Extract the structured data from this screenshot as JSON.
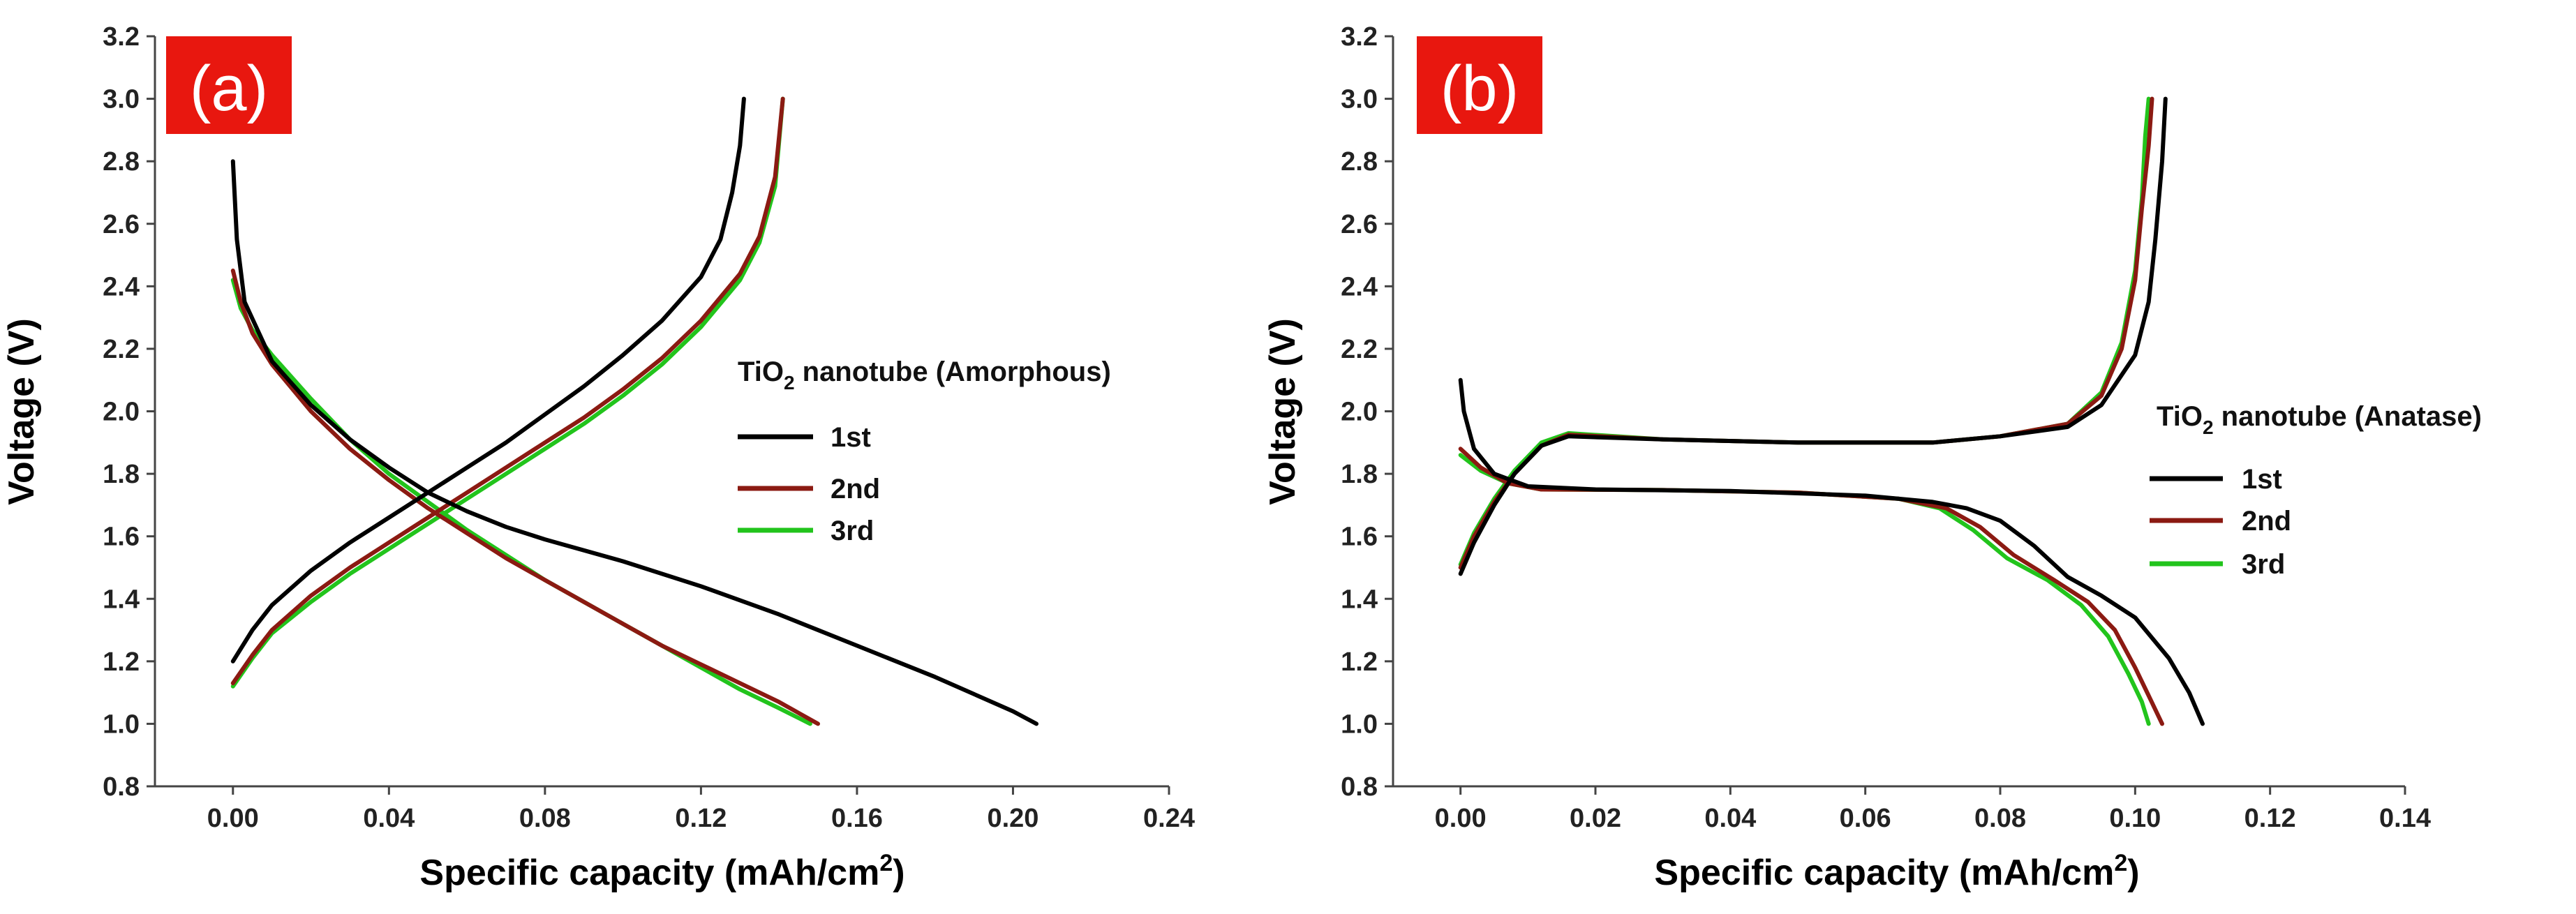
{
  "colors": {
    "cycle_1st": "#000000",
    "cycle_2nd": "#8b1a12",
    "cycle_3rd": "#22c41c",
    "panel_badge": "#e8170f"
  },
  "chart_data": [
    {
      "type": "line",
      "panel_label": "(a)",
      "xlabel": "Specific capacity (mAh/cm",
      "xlabel_sup": "2",
      "xlabel_tail": ")",
      "ylabel": "Voltage (V)",
      "xlim": [
        -0.02,
        0.24
      ],
      "ylim": [
        0.8,
        3.2
      ],
      "xticks": [
        0.0,
        0.04,
        0.08,
        0.12,
        0.16,
        0.2,
        0.24
      ],
      "xtick_labels": [
        "0.00",
        "0.04",
        "0.08",
        "0.12",
        "0.16",
        "0.20",
        "0.24"
      ],
      "yticks": [
        0.8,
        1.0,
        1.2,
        1.4,
        1.6,
        1.8,
        2.0,
        2.2,
        2.4,
        2.6,
        2.8,
        3.0,
        3.2
      ],
      "ytick_labels": [
        "0.8",
        "1.0",
        "1.2",
        "1.4",
        "1.6",
        "1.8",
        "2.0",
        "2.2",
        "2.4",
        "2.6",
        "2.8",
        "3.0",
        "3.2"
      ],
      "legend": {
        "title_main": "TiO",
        "title_sub": "2",
        "title_rest": " nanotube (Amorphous)",
        "placement": "right"
      },
      "series": [
        {
          "name": "1st",
          "color_key": "cycle_1st",
          "discharge": [
            [
              0.0,
              2.8
            ],
            [
              0.001,
              2.55
            ],
            [
              0.003,
              2.35
            ],
            [
              0.01,
              2.16
            ],
            [
              0.02,
              2.02
            ],
            [
              0.03,
              1.91
            ],
            [
              0.04,
              1.82
            ],
            [
              0.05,
              1.74
            ],
            [
              0.06,
              1.68
            ],
            [
              0.07,
              1.63
            ],
            [
              0.08,
              1.59
            ],
            [
              0.1,
              1.52
            ],
            [
              0.12,
              1.44
            ],
            [
              0.14,
              1.35
            ],
            [
              0.16,
              1.25
            ],
            [
              0.18,
              1.15
            ],
            [
              0.2,
              1.04
            ],
            [
              0.206,
              1.0
            ]
          ],
          "charge": [
            [
              0.0,
              1.2
            ],
            [
              0.005,
              1.3
            ],
            [
              0.01,
              1.38
            ],
            [
              0.02,
              1.49
            ],
            [
              0.03,
              1.58
            ],
            [
              0.04,
              1.66
            ],
            [
              0.05,
              1.74
            ],
            [
              0.06,
              1.82
            ],
            [
              0.07,
              1.9
            ],
            [
              0.08,
              1.99
            ],
            [
              0.09,
              2.08
            ],
            [
              0.1,
              2.18
            ],
            [
              0.11,
              2.29
            ],
            [
              0.12,
              2.43
            ],
            [
              0.125,
              2.55
            ],
            [
              0.128,
              2.7
            ],
            [
              0.13,
              2.85
            ],
            [
              0.131,
              3.0
            ]
          ]
        },
        {
          "name": "2nd",
          "color_key": "cycle_2nd",
          "discharge": [
            [
              0.0,
              2.45
            ],
            [
              0.002,
              2.35
            ],
            [
              0.005,
              2.25
            ],
            [
              0.01,
              2.15
            ],
            [
              0.02,
              2.0
            ],
            [
              0.03,
              1.88
            ],
            [
              0.04,
              1.78
            ],
            [
              0.05,
              1.69
            ],
            [
              0.06,
              1.61
            ],
            [
              0.07,
              1.53
            ],
            [
              0.08,
              1.46
            ],
            [
              0.09,
              1.39
            ],
            [
              0.1,
              1.32
            ],
            [
              0.11,
              1.25
            ],
            [
              0.12,
              1.19
            ],
            [
              0.13,
              1.13
            ],
            [
              0.14,
              1.07
            ],
            [
              0.15,
              1.0
            ]
          ],
          "charge": [
            [
              0.0,
              1.13
            ],
            [
              0.005,
              1.22
            ],
            [
              0.01,
              1.3
            ],
            [
              0.02,
              1.41
            ],
            [
              0.03,
              1.5
            ],
            [
              0.04,
              1.58
            ],
            [
              0.05,
              1.66
            ],
            [
              0.06,
              1.74
            ],
            [
              0.07,
              1.82
            ],
            [
              0.08,
              1.9
            ],
            [
              0.09,
              1.98
            ],
            [
              0.1,
              2.07
            ],
            [
              0.11,
              2.17
            ],
            [
              0.12,
              2.29
            ],
            [
              0.13,
              2.44
            ],
            [
              0.135,
              2.56
            ],
            [
              0.139,
              2.75
            ],
            [
              0.141,
              3.0
            ]
          ]
        },
        {
          "name": "3rd",
          "color_key": "cycle_3rd",
          "discharge": [
            [
              0.0,
              2.42
            ],
            [
              0.002,
              2.33
            ],
            [
              0.005,
              2.26
            ],
            [
              0.01,
              2.18
            ],
            [
              0.02,
              2.04
            ],
            [
              0.03,
              1.91
            ],
            [
              0.04,
              1.8
            ],
            [
              0.05,
              1.71
            ],
            [
              0.06,
              1.62
            ],
            [
              0.07,
              1.54
            ],
            [
              0.08,
              1.46
            ],
            [
              0.09,
              1.39
            ],
            [
              0.1,
              1.32
            ],
            [
              0.11,
              1.25
            ],
            [
              0.12,
              1.18
            ],
            [
              0.13,
              1.11
            ],
            [
              0.14,
              1.05
            ],
            [
              0.148,
              1.0
            ]
          ],
          "charge": [
            [
              0.0,
              1.12
            ],
            [
              0.005,
              1.21
            ],
            [
              0.01,
              1.29
            ],
            [
              0.02,
              1.39
            ],
            [
              0.03,
              1.48
            ],
            [
              0.04,
              1.56
            ],
            [
              0.05,
              1.64
            ],
            [
              0.06,
              1.72
            ],
            [
              0.07,
              1.8
            ],
            [
              0.08,
              1.88
            ],
            [
              0.09,
              1.96
            ],
            [
              0.1,
              2.05
            ],
            [
              0.11,
              2.15
            ],
            [
              0.12,
              2.27
            ],
            [
              0.13,
              2.42
            ],
            [
              0.135,
              2.54
            ],
            [
              0.139,
              2.72
            ],
            [
              0.141,
              3.0
            ]
          ]
        }
      ]
    },
    {
      "type": "line",
      "panel_label": "(b)",
      "xlabel": "Specific capacity (mAh/cm",
      "xlabel_sup": "2",
      "xlabel_tail": ")",
      "ylabel": "Voltage (V)",
      "xlim": [
        -0.01,
        0.14
      ],
      "ylim": [
        0.8,
        3.2
      ],
      "xticks": [
        0.0,
        0.02,
        0.04,
        0.06,
        0.08,
        0.1,
        0.12,
        0.14
      ],
      "xtick_labels": [
        "0.00",
        "0.02",
        "0.04",
        "0.06",
        "0.08",
        "0.10",
        "0.12",
        "0.14"
      ],
      "yticks": [
        0.8,
        1.0,
        1.2,
        1.4,
        1.6,
        1.8,
        2.0,
        2.2,
        2.4,
        2.6,
        2.8,
        3.0,
        3.2
      ],
      "ytick_labels": [
        "0.8",
        "1.0",
        "1.2",
        "1.4",
        "1.6",
        "1.8",
        "2.0",
        "2.2",
        "2.4",
        "2.6",
        "2.8",
        "3.0",
        "3.2"
      ],
      "legend": {
        "title_main": "TiO",
        "title_sub": "2",
        "title_rest": " nanotube (Anatase)",
        "placement": "right"
      },
      "series": [
        {
          "name": "1st",
          "color_key": "cycle_1st",
          "discharge": [
            [
              0.0,
              2.1
            ],
            [
              0.0005,
              2.0
            ],
            [
              0.002,
              1.88
            ],
            [
              0.005,
              1.8
            ],
            [
              0.01,
              1.76
            ],
            [
              0.02,
              1.75
            ],
            [
              0.04,
              1.745
            ],
            [
              0.06,
              1.73
            ],
            [
              0.07,
              1.71
            ],
            [
              0.075,
              1.69
            ],
            [
              0.08,
              1.65
            ],
            [
              0.085,
              1.57
            ],
            [
              0.09,
              1.47
            ],
            [
              0.095,
              1.41
            ],
            [
              0.1,
              1.34
            ],
            [
              0.105,
              1.21
            ],
            [
              0.108,
              1.1
            ],
            [
              0.11,
              1.0
            ]
          ],
          "charge": [
            [
              0.0,
              1.48
            ],
            [
              0.002,
              1.58
            ],
            [
              0.005,
              1.7
            ],
            [
              0.008,
              1.8
            ],
            [
              0.012,
              1.89
            ],
            [
              0.016,
              1.92
            ],
            [
              0.03,
              1.91
            ],
            [
              0.05,
              1.9
            ],
            [
              0.07,
              1.9
            ],
            [
              0.08,
              1.92
            ],
            [
              0.09,
              1.95
            ],
            [
              0.095,
              2.02
            ],
            [
              0.1,
              2.18
            ],
            [
              0.102,
              2.35
            ],
            [
              0.103,
              2.55
            ],
            [
              0.104,
              2.8
            ],
            [
              0.1045,
              3.0
            ]
          ]
        },
        {
          "name": "2nd",
          "color_key": "cycle_2nd",
          "discharge": [
            [
              0.0,
              1.88
            ],
            [
              0.003,
              1.82
            ],
            [
              0.007,
              1.77
            ],
            [
              0.012,
              1.75
            ],
            [
              0.03,
              1.748
            ],
            [
              0.05,
              1.74
            ],
            [
              0.065,
              1.72
            ],
            [
              0.072,
              1.69
            ],
            [
              0.077,
              1.63
            ],
            [
              0.082,
              1.54
            ],
            [
              0.088,
              1.46
            ],
            [
              0.093,
              1.39
            ],
            [
              0.097,
              1.3
            ],
            [
              0.1,
              1.18
            ],
            [
              0.102,
              1.09
            ],
            [
              0.104,
              1.0
            ]
          ],
          "charge": [
            [
              0.0,
              1.5
            ],
            [
              0.002,
              1.6
            ],
            [
              0.005,
              1.71
            ],
            [
              0.008,
              1.8
            ],
            [
              0.012,
              1.89
            ],
            [
              0.016,
              1.925
            ],
            [
              0.03,
              1.91
            ],
            [
              0.05,
              1.9
            ],
            [
              0.07,
              1.9
            ],
            [
              0.08,
              1.92
            ],
            [
              0.09,
              1.96
            ],
            [
              0.095,
              2.05
            ],
            [
              0.098,
              2.2
            ],
            [
              0.1,
              2.42
            ],
            [
              0.101,
              2.65
            ],
            [
              0.102,
              2.85
            ],
            [
              0.1025,
              3.0
            ]
          ]
        },
        {
          "name": "3rd",
          "color_key": "cycle_3rd",
          "discharge": [
            [
              0.0,
              1.86
            ],
            [
              0.003,
              1.81
            ],
            [
              0.007,
              1.77
            ],
            [
              0.012,
              1.75
            ],
            [
              0.03,
              1.748
            ],
            [
              0.05,
              1.74
            ],
            [
              0.065,
              1.72
            ],
            [
              0.071,
              1.69
            ],
            [
              0.076,
              1.62
            ],
            [
              0.081,
              1.53
            ],
            [
              0.087,
              1.46
            ],
            [
              0.092,
              1.38
            ],
            [
              0.096,
              1.28
            ],
            [
              0.099,
              1.16
            ],
            [
              0.101,
              1.07
            ],
            [
              0.102,
              1.0
            ]
          ],
          "charge": [
            [
              0.0,
              1.51
            ],
            [
              0.002,
              1.61
            ],
            [
              0.005,
              1.72
            ],
            [
              0.008,
              1.81
            ],
            [
              0.012,
              1.9
            ],
            [
              0.016,
              1.93
            ],
            [
              0.03,
              1.91
            ],
            [
              0.05,
              1.9
            ],
            [
              0.07,
              1.9
            ],
            [
              0.08,
              1.92
            ],
            [
              0.09,
              1.96
            ],
            [
              0.095,
              2.06
            ],
            [
              0.098,
              2.22
            ],
            [
              0.1,
              2.45
            ],
            [
              0.101,
              2.68
            ],
            [
              0.1015,
              2.88
            ],
            [
              0.102,
              3.0
            ]
          ]
        }
      ]
    }
  ]
}
